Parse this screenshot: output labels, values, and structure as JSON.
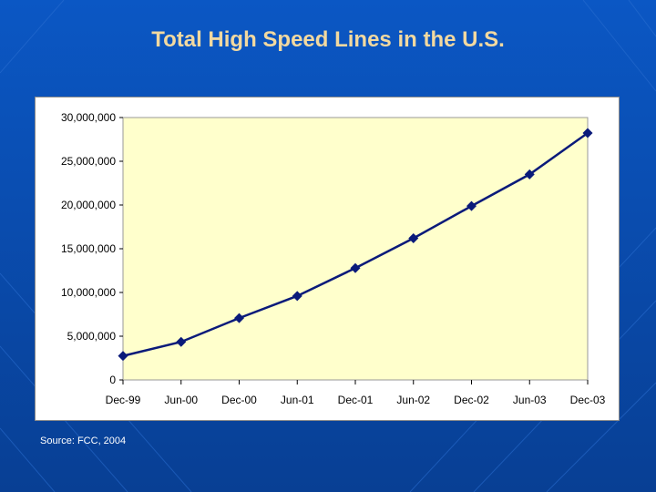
{
  "slide": {
    "title": "Total High Speed Lines in the U.S.",
    "source": "Source: FCC, 2004"
  },
  "colors": {
    "background": "#0a4fb0",
    "plot_area": "#ffffcc",
    "series": "#0a1a7a",
    "title": "#f2d9a0"
  },
  "chart_data": {
    "type": "line",
    "title": "Total High Speed Lines in the U.S.",
    "xlabel": "",
    "ylabel": "",
    "categories": [
      "Dec-99",
      "Jun-00",
      "Dec-00",
      "Jun-01",
      "Dec-01",
      "Jun-02",
      "Dec-02",
      "Jun-03",
      "Dec-03"
    ],
    "series": [
      {
        "values": [
          2750000,
          4350000,
          7070000,
          9600000,
          12790000,
          16200000,
          19880000,
          23500000,
          28230000
        ]
      }
    ],
    "ylim": [
      0,
      30000000
    ],
    "yticks": [
      0,
      5000000,
      10000000,
      15000000,
      20000000,
      25000000,
      30000000
    ],
    "ytick_labels": [
      "0",
      "5,000,000",
      "10,000,000",
      "15,000,000",
      "20,000,000",
      "25,000,000",
      "30,000,000"
    ],
    "grid": false,
    "legend": "none",
    "marker": "diamond"
  }
}
